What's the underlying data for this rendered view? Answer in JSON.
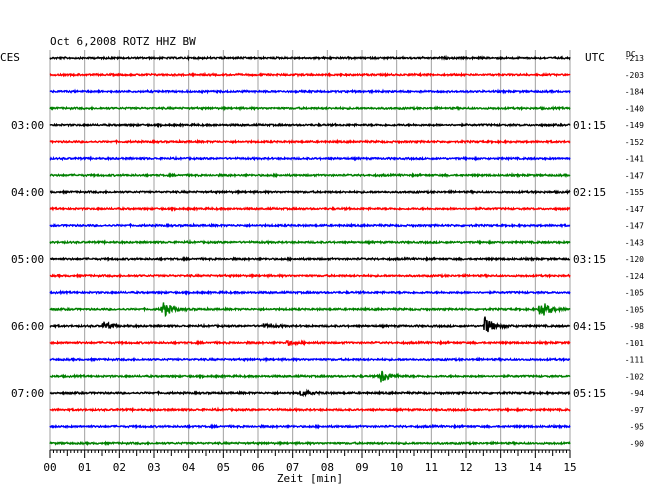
{
  "header": {
    "title": "Oct 6,2008  ROTZ HHZ BW",
    "left_label": "CES",
    "right_label": "UTC",
    "dc_label": "DC"
  },
  "chart_data": {
    "type": "line",
    "title": "Oct 6,2008  ROTZ HHZ BW",
    "xlabel": "Zeit [min]",
    "xlim": [
      0,
      15
    ],
    "x_ticks": [
      "00",
      "01",
      "02",
      "03",
      "04",
      "05",
      "06",
      "07",
      "08",
      "09",
      "10",
      "11",
      "12",
      "13",
      "14",
      "15"
    ],
    "grid": true,
    "trace_colors": [
      "#000000",
      "#ff0000",
      "#0000ff",
      "#008000"
    ],
    "left_time_labels": [
      {
        "trace": 4,
        "label": "03:00"
      },
      {
        "trace": 8,
        "label": "04:00"
      },
      {
        "trace": 12,
        "label": "05:00"
      },
      {
        "trace": 16,
        "label": "06:00"
      },
      {
        "trace": 20,
        "label": "07:00"
      }
    ],
    "right_time_labels": [
      {
        "trace": 4,
        "label": "01:15"
      },
      {
        "trace": 8,
        "label": "02:15"
      },
      {
        "trace": 12,
        "label": "03:15"
      },
      {
        "trace": 16,
        "label": "04:15"
      },
      {
        "trace": 20,
        "label": "05:15"
      }
    ],
    "dc_offsets": [
      -213,
      -203,
      -184,
      -140,
      -149,
      -152,
      -141,
      -147,
      -155,
      -147,
      -147,
      -143,
      -120,
      -124,
      -105,
      -105,
      -98,
      -101,
      -111,
      -102,
      -94,
      -97,
      -95,
      -90
    ],
    "events": [
      {
        "trace": 15,
        "minute": 3.2,
        "amplitude": 8
      },
      {
        "trace": 15,
        "minute": 14.1,
        "amplitude": 9
      },
      {
        "trace": 16,
        "minute": 1.5,
        "amplitude": 4
      },
      {
        "trace": 16,
        "minute": 6.1,
        "amplitude": 2
      },
      {
        "trace": 16,
        "minute": 12.5,
        "amplitude": 9
      },
      {
        "trace": 17,
        "minute": 6.8,
        "amplitude": 2
      },
      {
        "trace": 19,
        "minute": 9.5,
        "amplitude": 7
      },
      {
        "trace": 20,
        "minute": 7.2,
        "amplitude": 3
      }
    ]
  }
}
